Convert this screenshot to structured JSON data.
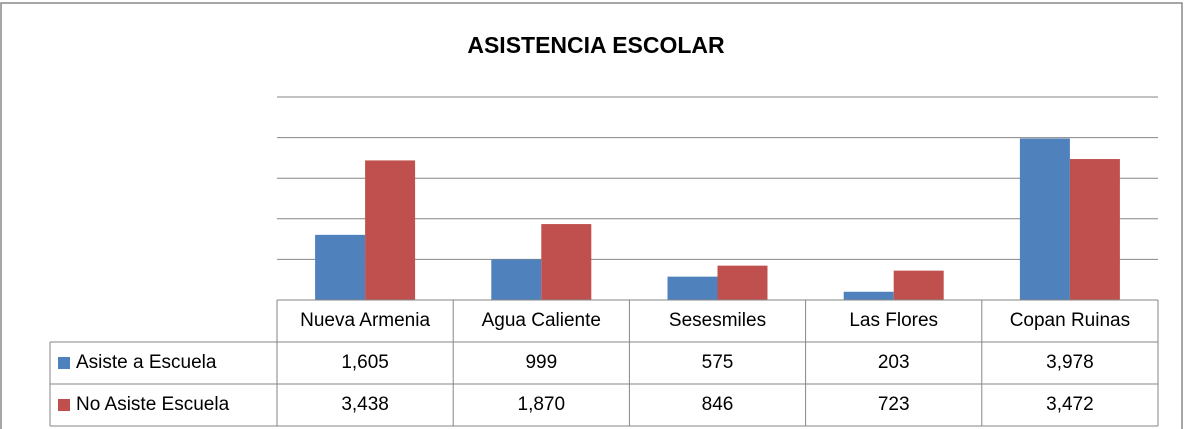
{
  "chart_data": {
    "type": "bar",
    "title": "ASISTENCIA ESCOLAR",
    "categories": [
      "Nueva Armenia",
      "Agua Caliente",
      "Sesesmiles",
      "Las Flores",
      "Copan Ruinas"
    ],
    "series": [
      {
        "name": "Asiste a Escuela",
        "color": "#4f81bd",
        "values": [
          1605,
          999,
          575,
          203,
          3978
        ],
        "value_labels": [
          "1,605",
          "999",
          "575",
          "203",
          "3,978"
        ]
      },
      {
        "name": "No Asiste Escuela",
        "color": "#c0504d",
        "values": [
          3438,
          1870,
          846,
          723,
          3472
        ],
        "value_labels": [
          "3,438",
          "1,870",
          "846",
          "723",
          "3,472"
        ]
      }
    ],
    "ylim": [
      0,
      5000
    ],
    "yticks": [
      0,
      1000,
      2000,
      3000,
      4000,
      5000
    ],
    "grid": true,
    "data_table": true
  }
}
